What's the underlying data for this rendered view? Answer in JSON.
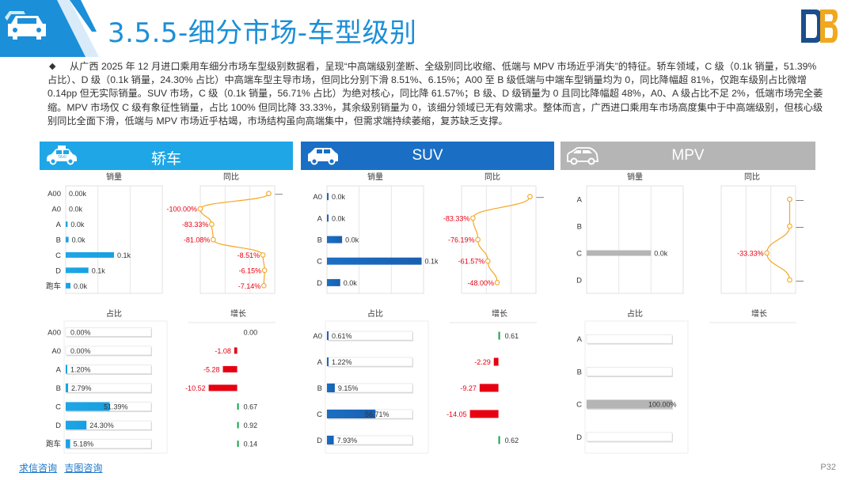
{
  "title": "3.5.5-细分市场-车型级别",
  "intro": "从广西 2025 年 12 月进口乘用车细分市场车型级别数据看，呈现“中高端级别垄断、全级别同比收缩、低端与 MPV 市场近乎消失”的特征。轿车领域，C 级（0.1k 销量，51.39% 占比）、D 级（0.1k 销量，24.30% 占比）中高端车型主导市场，但同比分别下滑 8.51%、6.15%；A00 至 B 级低端与中端车型销量均为 0，同比降幅超 81%，仅跑车级别占比微增 0.14pp 但无实际销量。SUV 市场，C 级（0.1k 销量，56.71% 占比）为绝对核心，同比降 61.57%；B 级、D 级销量为 0 且同比降幅超 48%，A0、A 级占比不足 2%，低端市场完全萎缩。MPV 市场仅 C 级有象征性销量，占比 100% 但同比降 33.33%，其余级别销量为 0，该细分领域已无有效需求。整体而言，广西进口乘用车市场高度集中于中高端级别，但核心级别同比全面下滑，低端与 MPV 市场近乎枯竭，市场结构虽向高端集中，但需求端持续萎缩，复苏缺乏支撑。",
  "bullet": "◆",
  "footer": {
    "link1": "求信咨询",
    "link2": "吉图咨询",
    "page": "P32"
  },
  "colors": {
    "sedan": "#1fa6e6",
    "suv": "#1a6fc4",
    "mpv": "#b5b5b5",
    "yoy_line": "#f5a623",
    "neg": "#e60012",
    "pos": "#16a34a"
  },
  "subtitles": {
    "sales": "销量",
    "yoy": "同比",
    "share": "占比",
    "growth": "增长"
  },
  "chart_data": [
    {
      "type": "bar",
      "segment": "轿车",
      "icon": "sedan-car-icon",
      "categories": [
        "A00",
        "A0",
        "A",
        "B",
        "C",
        "D",
        "跑车"
      ],
      "sales": {
        "values": [
          0.0,
          0.0,
          0.0,
          0.0,
          0.1,
          0.05,
          0.0
        ],
        "labels": [
          "0.00k",
          "0.0k",
          "0.0k",
          "0.0k",
          "0.1k",
          "0.1k",
          "0.0k"
        ],
        "bar_fraction": [
          0,
          0,
          0.02,
          0.03,
          0.51,
          0.24,
          0.05
        ]
      },
      "yoy": {
        "values": [
          null,
          -100.0,
          -83.33,
          -81.08,
          -8.51,
          -6.15,
          -7.14
        ],
        "labels": [
          "—",
          "-100.00%",
          "-83.33%",
          "-81.08%",
          "-8.51%",
          "-6.15%",
          "-7.14%"
        ]
      },
      "share": {
        "values": [
          0.0,
          0.0,
          1.2,
          2.79,
          51.39,
          24.3,
          5.18
        ],
        "labels": [
          "0.00%",
          "0.00%",
          "1.20%",
          "2.79%",
          "51.39%",
          "24.30%",
          "5.18%"
        ]
      },
      "growth": {
        "values": [
          0.0,
          -1.08,
          -5.28,
          -10.52,
          0.67,
          0.92,
          0.14
        ],
        "labels": [
          "0.00",
          "-1.08",
          "-5.28",
          "-10.52",
          "0.67",
          "0.92",
          "0.14"
        ]
      }
    },
    {
      "type": "bar",
      "segment": "SUV",
      "icon": "suv-car-icon",
      "categories": [
        "A0",
        "A",
        "B",
        "C",
        "D"
      ],
      "sales": {
        "values": [
          0.0,
          0.0,
          0.0,
          0.1,
          0.0
        ],
        "labels": [
          "0.0k",
          "0.0k",
          "0.0k",
          "0.1k",
          "0.0k"
        ],
        "bar_fraction": [
          0.01,
          0.01,
          0.16,
          1.0,
          0.14
        ]
      },
      "yoy": {
        "values": [
          null,
          -83.33,
          -76.19,
          -61.57,
          -48.0
        ],
        "labels": [
          "—",
          "-83.33%",
          "-76.19%",
          "-61.57%",
          "-48.00%"
        ]
      },
      "share": {
        "values": [
          0.61,
          1.22,
          9.15,
          56.71,
          7.93
        ],
        "labels": [
          "0.61%",
          "1.22%",
          "9.15%",
          "56.71%",
          "7.93%"
        ]
      },
      "growth": {
        "values": [
          0.61,
          -2.29,
          -9.27,
          -14.05,
          0.62
        ],
        "labels": [
          "0.61",
          "-2.29",
          "-9.27",
          "-14.05",
          "0.62"
        ]
      }
    },
    {
      "type": "bar",
      "segment": "MPV",
      "icon": "mpv-car-icon",
      "categories": [
        "A",
        "B",
        "C",
        "D"
      ],
      "sales": {
        "values": [
          0.0,
          0.0,
          0.0,
          0.0
        ],
        "labels": [
          "",
          "",
          "0.0k",
          ""
        ],
        "bar_fraction": [
          0,
          0,
          0.68,
          0
        ]
      },
      "yoy": {
        "values": [
          null,
          null,
          -33.33,
          null
        ],
        "labels": [
          "—",
          "—",
          "-33.33%",
          "—"
        ]
      },
      "share": {
        "values": [
          0,
          0,
          100.0,
          0
        ],
        "labels": [
          "",
          "",
          "100.00%",
          ""
        ]
      },
      "growth": {
        "values": [],
        "labels": []
      }
    }
  ]
}
